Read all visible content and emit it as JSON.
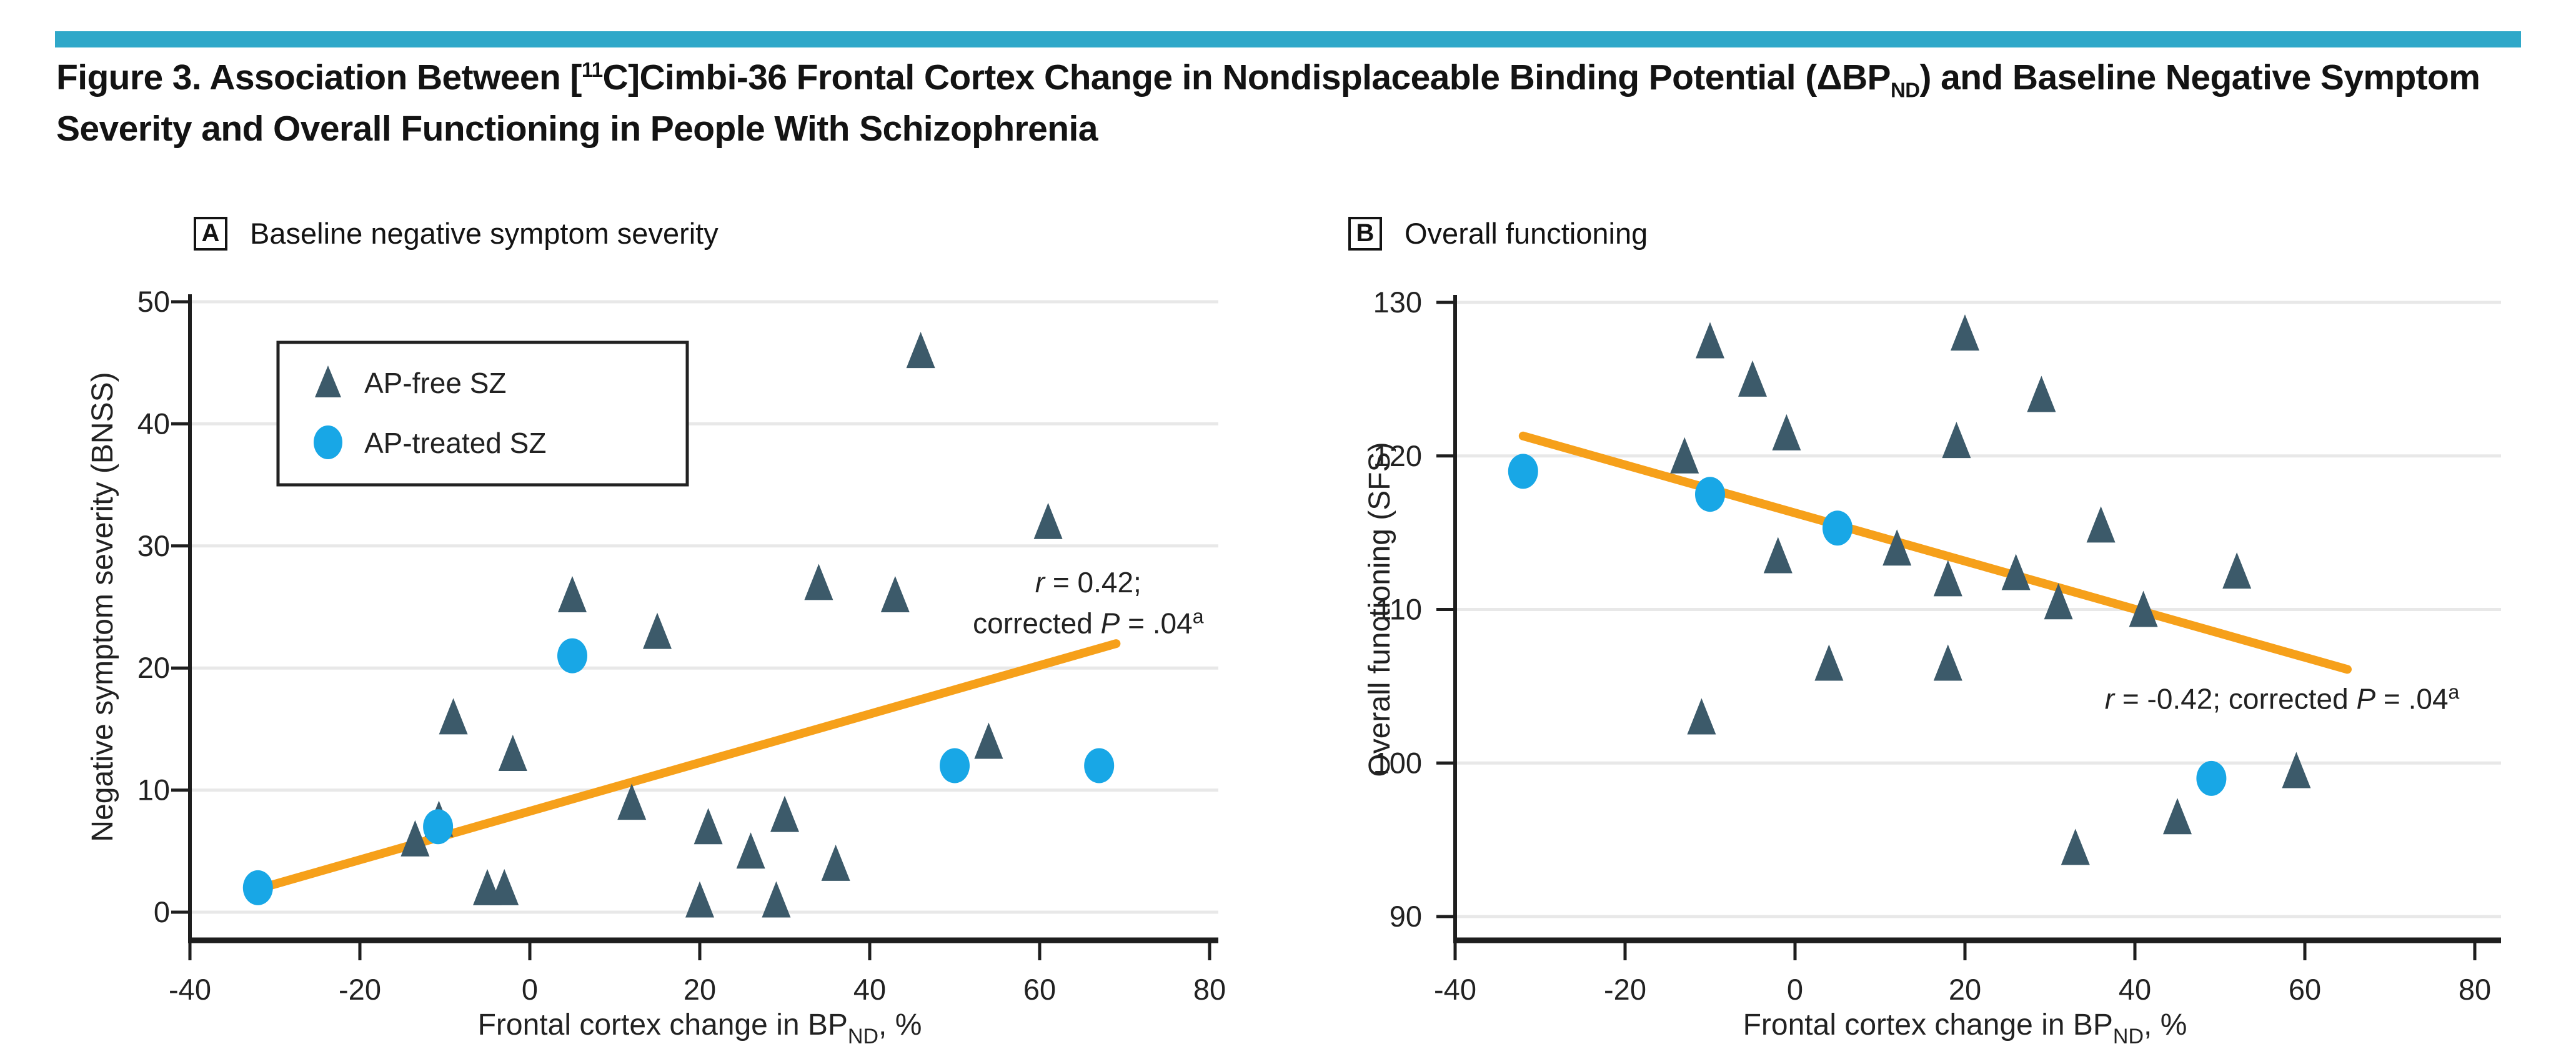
{
  "figure": {
    "title": {
      "p1": "Figure 3. Association Between [",
      "sup1": "11",
      "p2": "C]Cimbi-36 Frontal Cortex Change in Nondisplaceable Binding Potential (ΔBP",
      "sub1": "ND",
      "p3": ") and Baseline Negative Symptom",
      "p4": "Severity and Overall Functioning in People With Schizophrenia"
    },
    "accent_bar_color": "#2FA8C9"
  },
  "style": {
    "grid_color": "#E8E8E8",
    "axis_color": "#1E1E1E",
    "text_color": "#222222",
    "triangle_color": "#3C5A6A",
    "circle_color": "#18A7E6",
    "trend_color": "#F6A01A"
  },
  "chart_data": [
    {
      "id": "a",
      "panel_label": "A",
      "panel_title": "Baseline negative symptom severity",
      "type": "scatter",
      "xlabel": {
        "pre": "Frontal cortex change in BP",
        "sub": "ND",
        "post": ", %"
      },
      "ylabel": "Negative symptom severity (BNSS)",
      "xlim": [
        -40,
        80
      ],
      "ylim": [
        0,
        50
      ],
      "xticks": [
        -40,
        -20,
        0,
        20,
        40,
        60,
        80
      ],
      "yticks": [
        0,
        10,
        20,
        30,
        40,
        50
      ],
      "grid": "horizontal",
      "legend": true,
      "legend_entries": [
        "AP-free SZ",
        "AP-treated SZ"
      ],
      "series": [
        {
          "name": "AP-free SZ",
          "marker": "triangle",
          "color": "#3C5A6A",
          "points": [
            [
              -13.5,
              6
            ],
            [
              -10.7,
              7.6
            ],
            [
              -9,
              16
            ],
            [
              -5,
              2
            ],
            [
              -3,
              2
            ],
            [
              -2,
              13
            ],
            [
              5,
              26
            ],
            [
              12,
              9
            ],
            [
              15,
              23
            ],
            [
              20,
              1
            ],
            [
              21,
              7
            ],
            [
              26,
              5
            ],
            [
              29,
              1
            ],
            [
              30,
              8
            ],
            [
              34,
              27
            ],
            [
              36,
              4
            ],
            [
              43,
              26
            ],
            [
              46,
              46
            ],
            [
              54,
              14
            ],
            [
              61,
              32
            ]
          ]
        },
        {
          "name": "AP-treated SZ",
          "marker": "circle",
          "color": "#18A7E6",
          "points": [
            [
              -32,
              2
            ],
            [
              -10.8,
              7
            ],
            [
              5,
              21
            ],
            [
              50,
              12
            ],
            [
              67,
              12
            ]
          ]
        }
      ],
      "trend_line": {
        "color": "#F6A01A",
        "x1": -31,
        "y1": 2.1,
        "x2": 69,
        "y2": 22.0
      },
      "annotation": {
        "r": 0.42,
        "p_corrected": ".04",
        "fx": 0.881,
        "lines": [
          {
            "fy": 0.455,
            "tokens": [
              {
                "t": "r",
                "i": 1
              },
              {
                "t": " = 0.42;"
              }
            ]
          },
          {
            "fy": 0.519,
            "tokens": [
              {
                "t": "corrected "
              },
              {
                "t": "P",
                "i": 1
              },
              {
                "t": " = .04"
              },
              {
                "t": "a",
                "sup": 1
              }
            ]
          }
        ]
      }
    },
    {
      "id": "b",
      "panel_label": "B",
      "panel_title": "Overall functioning",
      "type": "scatter",
      "xlabel": {
        "pre": "Frontal cortex change in BP",
        "sub": "ND",
        "post": ", %"
      },
      "ylabel": "Overall functioning (SFS)",
      "xlim": [
        -40,
        80
      ],
      "ylim": [
        90,
        130
      ],
      "xticks": [
        -40,
        -20,
        0,
        20,
        40,
        60,
        80
      ],
      "yticks": [
        90,
        100,
        110,
        120,
        130
      ],
      "grid": "horizontal",
      "legend": false,
      "legend_entries": [],
      "series": [
        {
          "name": "AP-free SZ",
          "marker": "triangle",
          "color": "#3C5A6A",
          "points": [
            [
              -13,
              120
            ],
            [
              -11,
              103
            ],
            [
              -10,
              127.5
            ],
            [
              -5,
              125
            ],
            [
              -2,
              113.5
            ],
            [
              -1,
              121.5
            ],
            [
              4,
              106.5
            ],
            [
              12,
              114
            ],
            [
              18,
              112
            ],
            [
              18,
              106.5
            ],
            [
              19,
              121
            ],
            [
              20,
              128
            ],
            [
              26,
              112.4
            ],
            [
              29,
              124
            ],
            [
              31,
              110.5
            ],
            [
              33,
              94.5
            ],
            [
              36,
              115.5
            ],
            [
              41,
              110
            ],
            [
              45,
              96.5
            ],
            [
              52,
              112.5
            ],
            [
              59,
              99.5
            ]
          ]
        },
        {
          "name": "AP-treated SZ",
          "marker": "circle",
          "color": "#18A7E6",
          "points": [
            [
              -32,
              119
            ],
            [
              -10,
              117.5
            ],
            [
              5,
              115.3
            ],
            [
              49,
              99
            ]
          ]
        }
      ],
      "trend_line": {
        "color": "#F6A01A",
        "x1": -32,
        "y1": 121.3,
        "x2": 65,
        "y2": 106.1
      },
      "annotation": {
        "r": -0.42,
        "p_corrected": ".04",
        "fx": 0.811,
        "lines": [
          {
            "fy": 0.637,
            "tokens": [
              {
                "t": "r",
                "i": 1
              },
              {
                "t": " = -0.42; corrected "
              },
              {
                "t": "P",
                "i": 1
              },
              {
                "t": " = .04"
              },
              {
                "t": "a",
                "sup": 1
              }
            ]
          }
        ]
      }
    }
  ]
}
